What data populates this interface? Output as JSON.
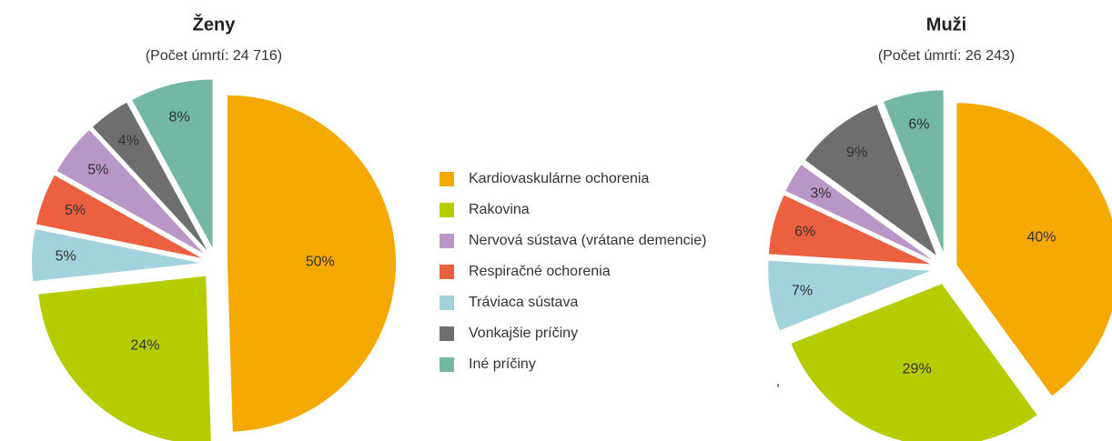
{
  "chart_data": [
    {
      "type": "pie",
      "title": "Ženy",
      "subtitle": "(Počet úmrtí: 24 716)",
      "categories": [
        "Kardiovaskulárne ochorenia",
        "Rakovina",
        "Tráviaca sústava",
        "Respiračné ochorenia",
        "Nervová sústava (vrátane demencie)",
        "Vonkajšie príčiny",
        "Iné príčiny"
      ],
      "values": [
        50,
        24,
        5,
        5,
        5,
        4,
        8
      ],
      "value_labels": [
        "50%",
        "24%",
        "5%",
        "5%",
        "5%",
        "4%",
        "8%"
      ],
      "colors": [
        "#f5a800",
        "#b5cc00",
        "#a2d2dc",
        "#ec6040",
        "#b996c8",
        "#6e6e6e",
        "#72b8a4"
      ]
    },
    {
      "type": "pie",
      "title": "Muži",
      "subtitle": "(Počet úmrtí: 26 243)",
      "categories": [
        "Kardiovaskulárne ochorenia",
        "Rakovina",
        "Tráviaca sústava",
        "Respiračné ochorenia",
        "Nervová sústava (vrátane demencie)",
        "Vonkajšie príčiny",
        "Iné príčiny"
      ],
      "values": [
        40,
        29,
        7,
        6,
        3,
        9,
        6
      ],
      "value_labels": [
        "40%",
        "29%",
        "7%",
        "6%",
        "3%",
        "9%",
        "6%"
      ],
      "colors": [
        "#f5a800",
        "#b5cc00",
        "#a2d2dc",
        "#ec6040",
        "#b996c8",
        "#6e6e6e",
        "#72b8a4"
      ]
    }
  ],
  "legend": {
    "entries": [
      "Kardiovaskulárne ochorenia",
      "Rakovina",
      "Nervová sústava (vrátane demencie)",
      "Respiračné ochorenia",
      "Tráviaca sústava",
      "Vonkajšie príčiny",
      "Iné príčiny"
    ],
    "colors": [
      "#f5a800",
      "#b5cc00",
      "#b996c8",
      "#ec6040",
      "#a2d2dc",
      "#6e6e6e",
      "#72b8a4"
    ]
  },
  "note": ","
}
